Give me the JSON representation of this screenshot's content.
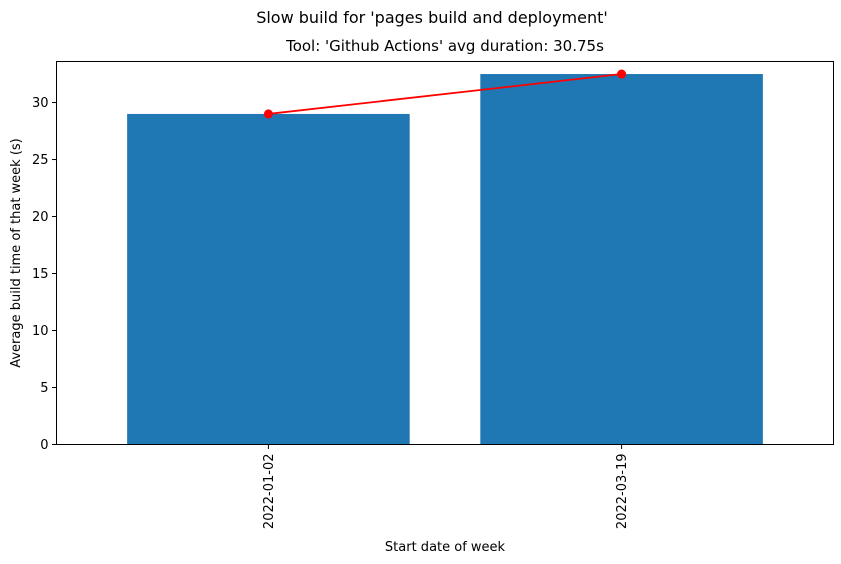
{
  "chart_data": {
    "type": "bar",
    "suptitle": "Slow build for 'pages build and deployment'",
    "title": "Tool: 'Github Actions' avg duration: 30.75s",
    "xlabel": "Start date of week",
    "ylabel": "Average build time of that week (s)",
    "categories": [
      "2022-01-02",
      "2022-03-19"
    ],
    "values": [
      29.0,
      32.5
    ],
    "line_values": [
      29.0,
      32.5
    ],
    "ylim": [
      0,
      33.6
    ],
    "yticks": [
      0,
      5,
      10,
      15,
      20,
      25,
      30
    ],
    "grid": false,
    "bar_color": "#1f77b4",
    "line_color": "#ff0000"
  }
}
